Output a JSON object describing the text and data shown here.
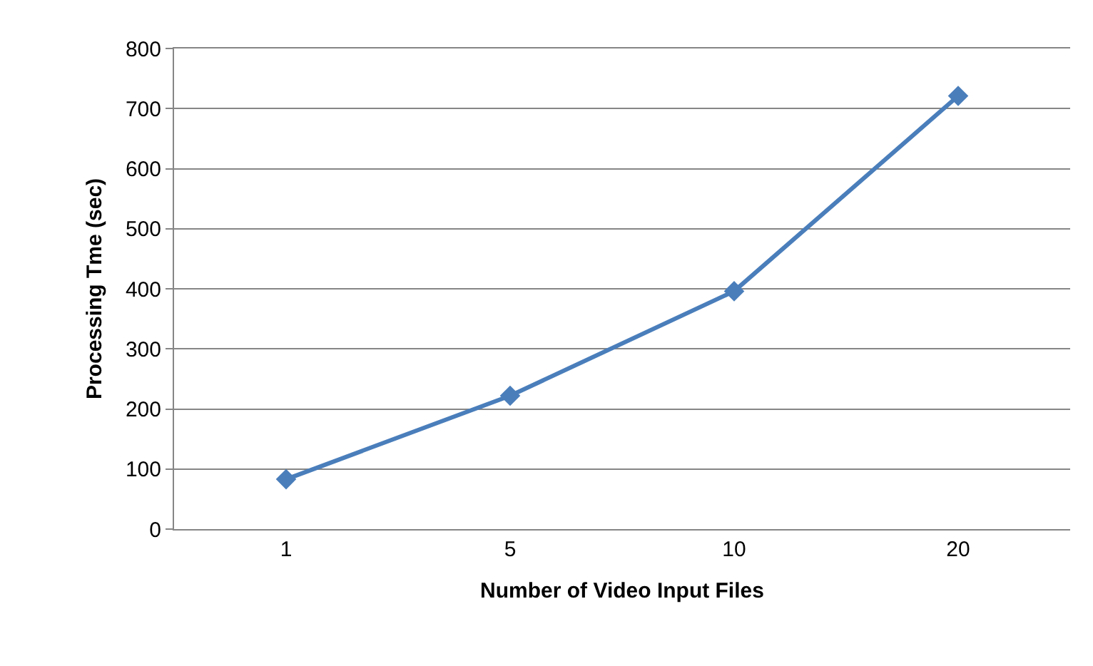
{
  "chart_data": {
    "type": "line",
    "xlabel": "Number of Video Input Files",
    "ylabel": "Processing Tme (sec)",
    "categories": [
      "1",
      "5",
      "10",
      "20"
    ],
    "series": [
      {
        "color": "#4a7ebb",
        "values": [
          83,
          222,
          396,
          721
        ]
      }
    ],
    "ylim": [
      0,
      800
    ],
    "yticks": [
      0,
      100,
      200,
      300,
      400,
      500,
      600,
      700,
      800
    ],
    "grid": "y",
    "marker": "diamond",
    "line_style": "solid"
  }
}
